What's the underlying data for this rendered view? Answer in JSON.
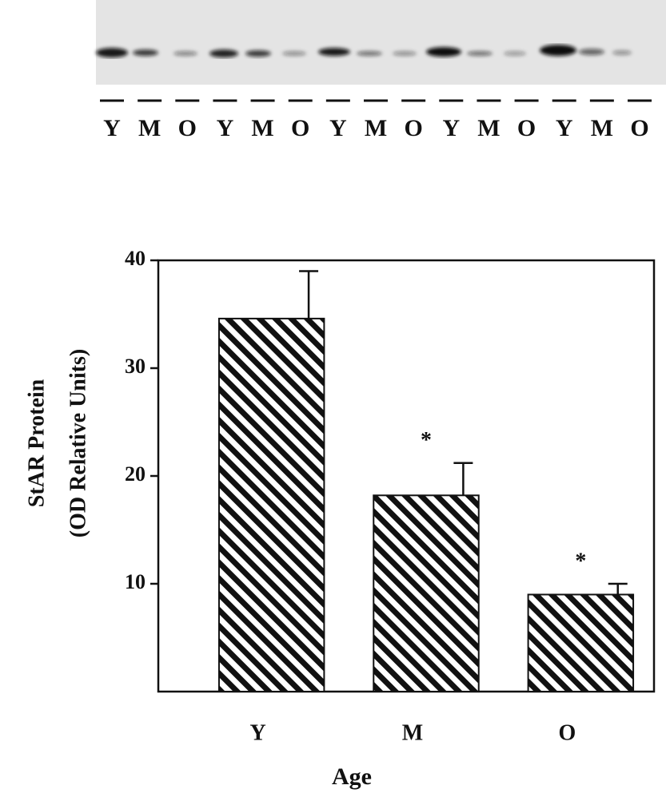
{
  "blot": {
    "lanes": [
      "Y",
      "M",
      "O",
      "Y",
      "M",
      "O",
      "Y",
      "M",
      "O",
      "Y",
      "M",
      "O",
      "Y",
      "M",
      "O"
    ]
  },
  "chart_data": {
    "type": "bar",
    "categories": [
      "Y",
      "M",
      "O"
    ],
    "values": [
      34.6,
      18.2,
      9.0
    ],
    "errors": [
      4.4,
      3.0,
      1.0
    ],
    "significance": [
      null,
      "*",
      "*"
    ],
    "ylim": [
      0,
      40
    ],
    "yticks": [
      10,
      20,
      30,
      40
    ],
    "ylabel": [
      "StAR Protein",
      "(OD Relative Units)"
    ],
    "xlabel": "Age",
    "color": "#111111",
    "hatch": true
  }
}
